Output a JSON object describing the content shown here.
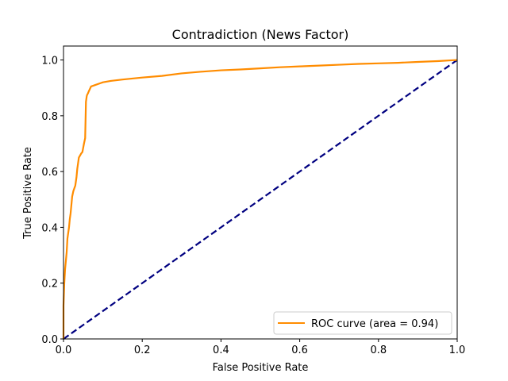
{
  "chart_data": {
    "type": "line",
    "title": "Contradiction (News Factor)",
    "xlabel": "False Positive Rate",
    "ylabel": "True Positive Rate",
    "xlim": [
      0.0,
      1.0
    ],
    "ylim": [
      0.0,
      1.05
    ],
    "x_ticks": [
      "0.0",
      "0.2",
      "0.4",
      "0.6",
      "0.8",
      "1.0"
    ],
    "y_ticks": [
      "0.0",
      "0.2",
      "0.4",
      "0.6",
      "0.8",
      "1.0"
    ],
    "grid": false,
    "legend_position": "lower-right",
    "series": [
      {
        "name": "ROC curve (area = 0.94)",
        "color": "#ff8c00",
        "style": "solid",
        "x": [
          0.0,
          0.0,
          0.002,
          0.004,
          0.006,
          0.008,
          0.01,
          0.012,
          0.014,
          0.016,
          0.018,
          0.02,
          0.022,
          0.025,
          0.03,
          0.033,
          0.035,
          0.037,
          0.039,
          0.041,
          0.043,
          0.045,
          0.048,
          0.052,
          0.055,
          0.057,
          0.058,
          0.059,
          0.06,
          0.062,
          0.065,
          0.07,
          0.08,
          0.1,
          0.12,
          0.15,
          0.2,
          0.25,
          0.3,
          0.35,
          0.4,
          0.45,
          0.5,
          0.55,
          0.6,
          0.65,
          0.7,
          0.75,
          0.8,
          0.85,
          0.9,
          0.95,
          1.0
        ],
        "y": [
          0.0,
          0.12,
          0.2,
          0.25,
          0.28,
          0.31,
          0.36,
          0.38,
          0.4,
          0.43,
          0.45,
          0.48,
          0.51,
          0.53,
          0.55,
          0.58,
          0.61,
          0.63,
          0.65,
          0.655,
          0.66,
          0.665,
          0.67,
          0.7,
          0.72,
          0.85,
          0.86,
          0.87,
          0.875,
          0.88,
          0.89,
          0.905,
          0.91,
          0.92,
          0.925,
          0.93,
          0.937,
          0.943,
          0.952,
          0.958,
          0.963,
          0.966,
          0.97,
          0.974,
          0.977,
          0.98,
          0.983,
          0.986,
          0.988,
          0.99,
          0.993,
          0.996,
          1.0
        ]
      },
      {
        "name": "",
        "color": "#000080",
        "style": "dashed",
        "x": [
          0.0,
          1.0
        ],
        "y": [
          0.0,
          1.0
        ]
      }
    ]
  }
}
